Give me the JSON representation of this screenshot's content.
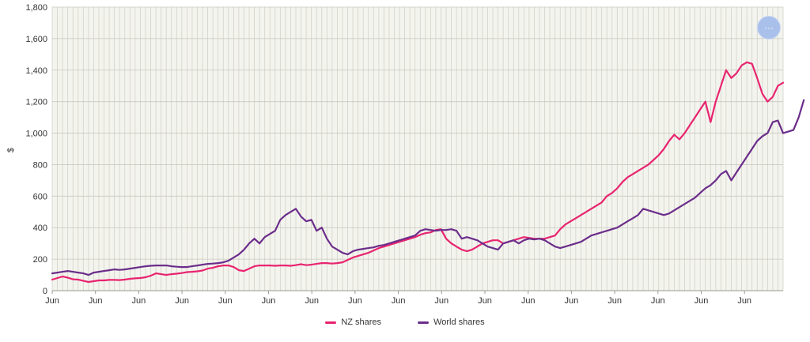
{
  "chart_data": {
    "type": "line",
    "title": "",
    "xlabel": "",
    "ylabel": "$",
    "ylim": [
      0,
      1800
    ],
    "y_ticks": [
      "0",
      "200",
      "400",
      "600",
      "800",
      "1,000",
      "1,200",
      "1,400",
      "1,600",
      "1,800"
    ],
    "x_tick_label": "Jun",
    "x_tick_count": 17,
    "grid": true,
    "legend_position": "bottom",
    "series": [
      {
        "name": "NZ shares",
        "color": "#e8246f",
        "values": [
          70,
          80,
          90,
          82,
          72,
          70,
          62,
          55,
          60,
          65,
          65,
          68,
          68,
          67,
          70,
          75,
          78,
          80,
          85,
          95,
          110,
          105,
          100,
          105,
          108,
          112,
          118,
          120,
          123,
          128,
          140,
          145,
          155,
          160,
          160,
          150,
          130,
          125,
          140,
          155,
          160,
          160,
          160,
          158,
          160,
          160,
          158,
          162,
          168,
          162,
          165,
          170,
          175,
          175,
          172,
          175,
          180,
          195,
          210,
          220,
          230,
          240,
          255,
          270,
          280,
          290,
          300,
          310,
          320,
          330,
          340,
          355,
          365,
          370,
          385,
          390,
          330,
          300,
          280,
          260,
          250,
          260,
          280,
          300,
          310,
          320,
          320,
          300,
          310,
          320,
          330,
          340,
          335,
          330,
          330,
          330,
          340,
          350,
          390,
          420,
          440,
          460,
          480,
          500,
          520,
          540,
          560,
          600,
          620,
          650,
          690,
          720,
          740,
          760,
          780,
          800,
          830,
          860,
          900,
          950,
          990,
          960,
          1000,
          1050,
          1100,
          1150,
          1200,
          1070,
          1200,
          1300,
          1400,
          1350,
          1380,
          1430,
          1450,
          1440,
          1350,
          1250,
          1200,
          1230,
          1300,
          1320
        ]
      },
      {
        "name": "World shares",
        "color": "#6b2d8a",
        "values": [
          110,
          115,
          120,
          125,
          120,
          115,
          110,
          100,
          115,
          120,
          125,
          130,
          135,
          132,
          135,
          140,
          145,
          150,
          155,
          158,
          160,
          160,
          160,
          155,
          152,
          150,
          150,
          155,
          160,
          165,
          170,
          172,
          175,
          180,
          190,
          210,
          230,
          260,
          300,
          330,
          300,
          340,
          360,
          380,
          450,
          480,
          500,
          520,
          470,
          440,
          450,
          380,
          400,
          330,
          280,
          260,
          240,
          230,
          250,
          260,
          265,
          270,
          275,
          285,
          290,
          300,
          310,
          320,
          330,
          340,
          350,
          380,
          390,
          385,
          380,
          385,
          385,
          390,
          380,
          330,
          340,
          330,
          320,
          300,
          280,
          270,
          260,
          300,
          310,
          320,
          300,
          320,
          330,
          325,
          330,
          320,
          300,
          280,
          270,
          280,
          290,
          300,
          310,
          330,
          350,
          360,
          370,
          380,
          390,
          400,
          420,
          440,
          460,
          480,
          520,
          510,
          500,
          490,
          480,
          490,
          510,
          530,
          550,
          570,
          590,
          620,
          650,
          670,
          700,
          740,
          760,
          700,
          750,
          800,
          850,
          900,
          950,
          980,
          1000,
          1070,
          1080,
          1000,
          1010,
          1020,
          1100,
          1210
        ]
      }
    ]
  },
  "legend": {
    "nz_label": "NZ shares",
    "world_label": "World shares"
  },
  "controls": {
    "menu_label": "···"
  }
}
